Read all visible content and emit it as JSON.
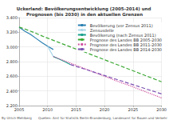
{
  "chart_data": {
    "type": "line",
    "title": "Uckerland: Bevölkerungsentwicklung (2005-2014) und Prognosen (bis 2030) in den aktuellen Grenzen",
    "annotations": [
      "By Ulrich Mehlberg",
      "Quellen: Amt für Statistik Berlin-Brandenburg, Landesamt für Bauen und Verkehr"
    ],
    "x": [
      2005,
      2006,
      2007,
      2008,
      2009,
      2010,
      2011,
      2012,
      2013,
      2014,
      2015,
      2016,
      2017,
      2018,
      2019,
      2020,
      2021,
      2022,
      2023,
      2024,
      2025,
      2026,
      2027,
      2028,
      2029,
      2030
    ],
    "series": [
      {
        "name": "Bevölkerung (vor Zensus 2011)",
        "color": "#2a7fb0",
        "line_style": "solid",
        "values": [
          3270,
          3215,
          3170,
          3115,
          3060,
          3010,
          2965,
          null,
          null,
          null,
          null,
          null,
          null,
          null,
          null,
          null,
          null,
          null,
          null,
          null,
          null,
          null,
          null,
          null,
          null,
          null
        ]
      },
      {
        "name": "Zensusdelle",
        "color": "#a9d6e8",
        "line_style": "solid",
        "values": [
          null,
          null,
          null,
          null,
          null,
          3010,
          2870,
          null,
          null,
          null,
          null,
          null,
          null,
          null,
          null,
          null,
          null,
          null,
          null,
          null,
          null,
          null,
          null,
          null,
          null,
          null
        ]
      },
      {
        "name": "Bevölkerung (nach Zensus 2011)",
        "color": "#17a08a",
        "line_style": "solid",
        "values": [
          null,
          null,
          null,
          null,
          null,
          null,
          2870,
          2835,
          2800,
          2760,
          null,
          null,
          null,
          null,
          null,
          null,
          null,
          null,
          null,
          null,
          null,
          null,
          null,
          null,
          null,
          null
        ]
      },
      {
        "name": "Prognose des Landes BB 2005-2030",
        "color": "#3aa832",
        "line_style": "dashed",
        "values": [
          3270,
          3245,
          3215,
          3185,
          3150,
          3120,
          3090,
          3060,
          3030,
          3000,
          2970,
          2945,
          2915,
          2885,
          2855,
          2825,
          2795,
          2765,
          2735,
          2705,
          2675,
          2645,
          2615,
          2585,
          2555,
          2525
        ]
      },
      {
        "name": "Prognose des Landes BB 2011-2030",
        "color": "#d04fa0",
        "line_style": "dotted",
        "values": [
          null,
          null,
          null,
          null,
          null,
          null,
          2870,
          2840,
          2810,
          2780,
          2750,
          2720,
          2690,
          2660,
          2630,
          2600,
          2570,
          2540,
          2510,
          2485,
          2455,
          2425,
          2395,
          2365,
          2335,
          2305
        ]
      },
      {
        "name": "Prognose des Landes BB 2014-2030",
        "color": "#7b4fb0",
        "line_style": "dashed",
        "values": [
          null,
          null,
          null,
          null,
          null,
          null,
          null,
          null,
          null,
          2760,
          2735,
          2710,
          2685,
          2660,
          2635,
          2610,
          2585,
          2560,
          2535,
          2510,
          2485,
          2460,
          2435,
          2410,
          2385,
          2360
        ]
      }
    ],
    "xlim": [
      2005,
      2030
    ],
    "xticks": [
      2005,
      2010,
      2015,
      2020,
      2025,
      2030
    ],
    "ylim": [
      2200,
      3400
    ],
    "yticks": [
      {
        "value": 2200,
        "label": "2.200"
      },
      {
        "value": 2400,
        "label": "2.400"
      },
      {
        "value": 2600,
        "label": "2.600"
      },
      {
        "value": 2800,
        "label": "2.800"
      },
      {
        "value": 3000,
        "label": "3.000"
      },
      {
        "value": 3200,
        "label": "3.200"
      },
      {
        "value": 3400,
        "label": "3.400"
      }
    ],
    "grid": true,
    "legend": "top-right",
    "marker": "none"
  }
}
